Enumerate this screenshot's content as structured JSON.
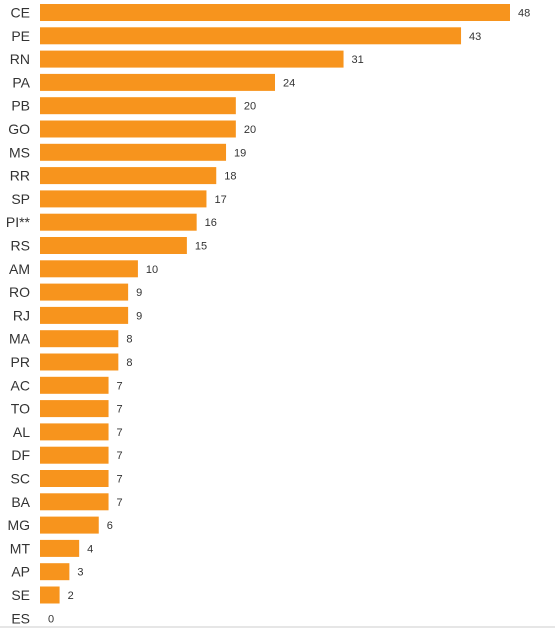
{
  "chart_data": {
    "type": "bar",
    "orientation": "horizontal",
    "categories": [
      "CE",
      "PE",
      "RN",
      "PA",
      "PB",
      "GO",
      "MS",
      "RR",
      "SP",
      "PI**",
      "RS",
      "AM",
      "RO",
      "RJ",
      "MA",
      "PR",
      "AC",
      "TO",
      "AL",
      "DF",
      "SC",
      "BA",
      "MG",
      "MT",
      "AP",
      "SE",
      "ES"
    ],
    "values": [
      48,
      43,
      31,
      24,
      20,
      20,
      19,
      18,
      17,
      16,
      15,
      10,
      9,
      9,
      8,
      8,
      7,
      7,
      7,
      7,
      7,
      7,
      6,
      4,
      3,
      2,
      0
    ],
    "xlim": [
      0,
      48
    ],
    "grid": false,
    "legend": "none",
    "bar_color": "#F7941D",
    "axis_line_color": "#CCCCCC",
    "label_color": "#333333"
  }
}
